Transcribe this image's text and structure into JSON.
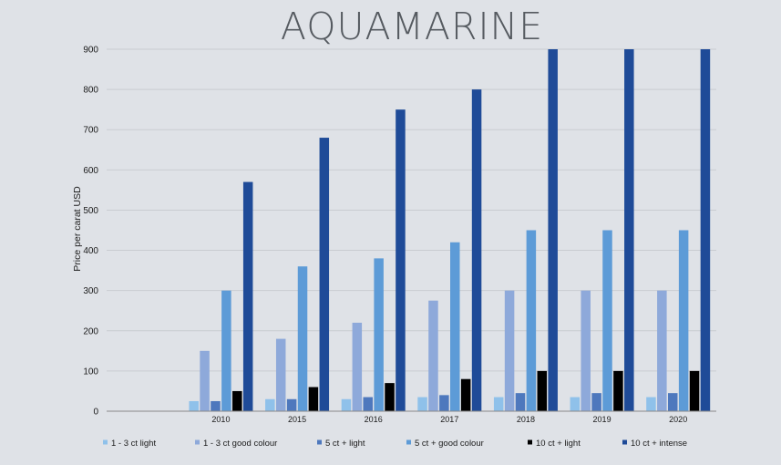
{
  "chart_data": {
    "type": "bar",
    "title": "AQUAMARINE",
    "xlabel": "",
    "ylabel": "Price per carat USD",
    "ylim": [
      0,
      900
    ],
    "yticks": [
      0,
      100,
      200,
      300,
      400,
      500,
      600,
      700,
      800,
      900
    ],
    "grid": true,
    "legend_position": "bottom",
    "categories": [
      "",
      "2010",
      "2015",
      "2016",
      "2017",
      "2018",
      "2019",
      "2020"
    ],
    "series": [
      {
        "name": "1 - 3 ct light",
        "color": "#8fc1ea",
        "values": [
          null,
          25,
          30,
          30,
          35,
          35,
          35,
          35
        ]
      },
      {
        "name": "1 - 3 ct good colour",
        "color": "#8ea9da",
        "values": [
          null,
          150,
          180,
          220,
          275,
          300,
          300,
          300
        ]
      },
      {
        "name": "5 ct +  light",
        "color": "#4e78bd",
        "values": [
          null,
          25,
          30,
          35,
          40,
          45,
          45,
          45
        ]
      },
      {
        "name": "5 ct +  good colour",
        "color": "#5d9bd7",
        "values": [
          null,
          300,
          360,
          380,
          420,
          450,
          450,
          450
        ]
      },
      {
        "name": "10 ct +  light",
        "color": "#000000",
        "values": [
          null,
          50,
          60,
          70,
          80,
          100,
          100,
          100
        ]
      },
      {
        "name": "10 ct +  intense",
        "color": "#1f4b98",
        "values": [
          null,
          570,
          680,
          750,
          800,
          900,
          900,
          900
        ]
      }
    ]
  }
}
